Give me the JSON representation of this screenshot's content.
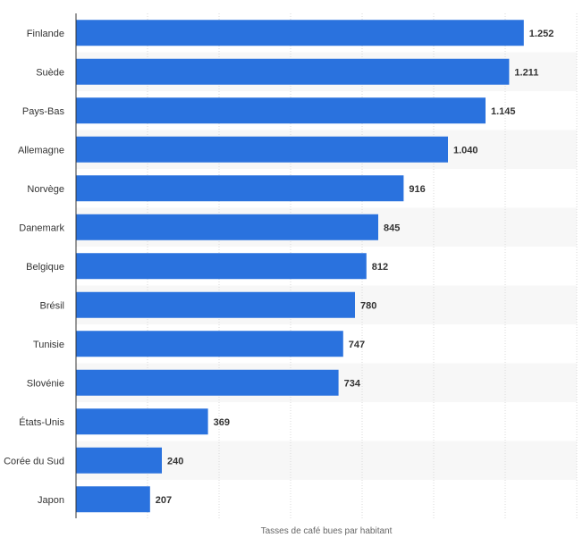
{
  "chart_data": {
    "type": "bar",
    "orientation": "horizontal",
    "title": "",
    "xlabel": "Tasses de café bues par habitant",
    "ylabel": "",
    "xlim": [
      0,
      1400
    ],
    "bar_color": "#2a72de",
    "grid": true,
    "categories": [
      "Finlande",
      "Suède",
      "Pays-Bas",
      "Allemagne",
      "Norvège",
      "Danemark",
      "Belgique",
      "Brésil",
      "Tunisie",
      "Slovénie",
      "États-Unis",
      "Corée du Sud",
      "Japon"
    ],
    "values": [
      1252,
      1211,
      1145,
      1040,
      916,
      845,
      812,
      780,
      747,
      734,
      369,
      240,
      207
    ],
    "value_labels": [
      "1.252",
      "1.211",
      "1.145",
      "1.040",
      "916",
      "845",
      "812",
      "780",
      "747",
      "734",
      "369",
      "240",
      "207"
    ]
  }
}
